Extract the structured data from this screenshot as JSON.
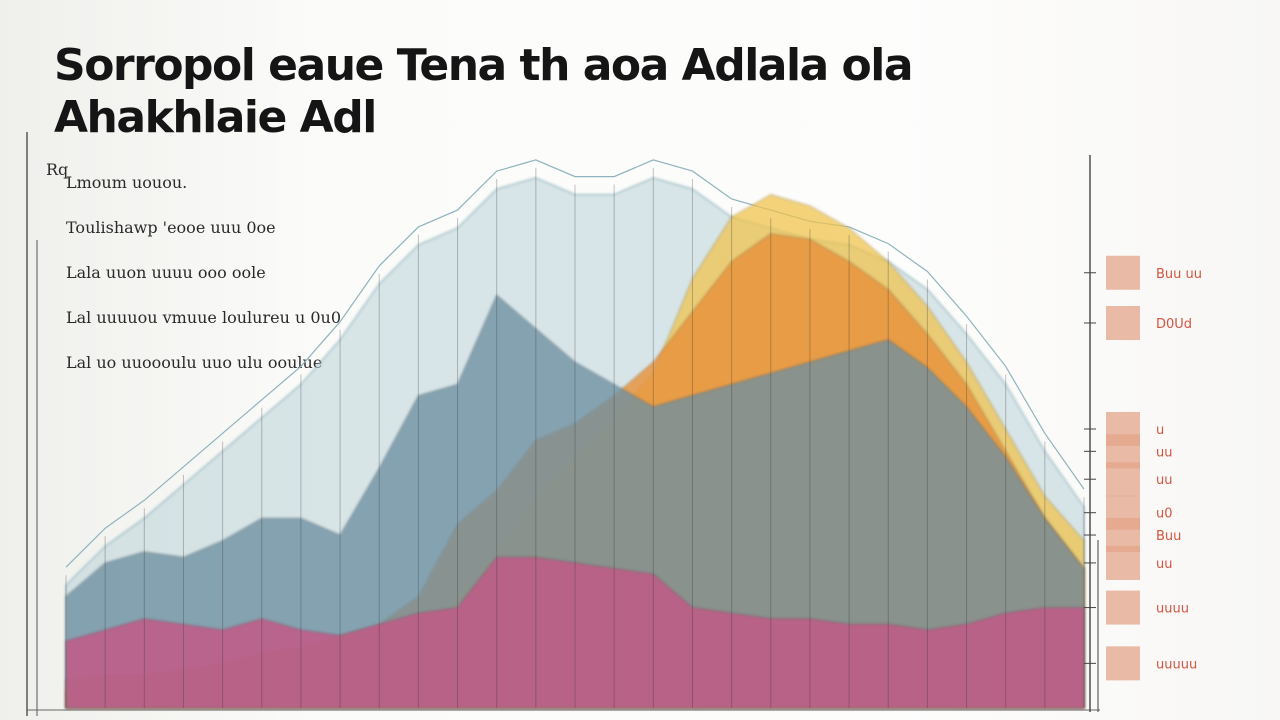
{
  "chart_data": {
    "type": "area",
    "title": "Sorropol eaue Tena th aoa Adlala ola Ahakhlaie Adl",
    "legend": {
      "placement": "top-left",
      "marker": "Rq",
      "entries": [
        "Lmoum uouou.",
        "Toulishawp 'eooe uuu 0oe",
        "Lala uuon uuuu ooo oole",
        "Lal uuuuou vmuue loulureu u 0u0",
        "Lal uo uuoooulu uuo ulu ooulue"
      ]
    },
    "grid": "vertical",
    "ylim": [
      0,
      100
    ],
    "x": [
      0,
      1,
      2,
      3,
      4,
      5,
      6,
      7,
      8,
      9,
      10,
      11,
      12,
      13,
      14,
      15,
      16,
      17,
      18,
      19,
      20,
      21,
      22,
      23,
      24,
      25,
      26
    ],
    "series": [
      {
        "color": "#c25a86",
        "values": [
          12,
          14,
          16,
          15,
          14,
          16,
          14,
          13,
          15,
          17,
          18,
          27,
          27,
          26,
          25,
          24,
          18,
          17,
          16,
          16,
          15,
          15,
          14,
          15,
          17,
          18,
          18
        ]
      },
      {
        "color": "#6e8fa1",
        "values": [
          20,
          26,
          28,
          27,
          30,
          34,
          34,
          31,
          43,
          56,
          58,
          74,
          68,
          62,
          58,
          54,
          56,
          58,
          60,
          62,
          64,
          66,
          61,
          54,
          45,
          34,
          25
        ]
      },
      {
        "color": "#e8923a",
        "values": [
          5,
          6,
          6,
          7,
          8,
          10,
          11,
          13,
          15,
          20,
          33,
          39,
          48,
          51,
          56,
          62,
          71,
          80,
          85,
          84,
          80,
          75,
          67,
          58,
          46,
          34,
          25
        ]
      },
      {
        "color": "#f0c24a",
        "values": [
          3,
          4,
          4,
          5,
          5,
          6,
          7,
          8,
          10,
          13,
          20,
          28,
          38,
          45,
          52,
          60,
          77,
          88,
          92,
          90,
          86,
          80,
          72,
          62,
          50,
          38,
          30
        ]
      },
      {
        "color": "#b9d4d8",
        "values": [
          22,
          29,
          34,
          40,
          46,
          52,
          58,
          66,
          76,
          83,
          86,
          93,
          95,
          92,
          92,
          95,
          93,
          88,
          86,
          84,
          83,
          80,
          75,
          67,
          58,
          46,
          36
        ]
      }
    ],
    "right_scale": {
      "ticks": [
        "Buu uu",
        "D0Ud",
        "u",
        "uu",
        "uu",
        "u0",
        "Buu",
        "uu",
        "uuuu",
        "uuuuu"
      ],
      "values": [
        78,
        69,
        50,
        46,
        41,
        35,
        31,
        26,
        18,
        8
      ]
    },
    "colors": {
      "series_1": "#c25a86",
      "series_2": "#6e8fa1",
      "series_3": "#e8923a",
      "series_4": "#f0c24a",
      "series_5": "#b9d4d8",
      "scale_bar": "#e3a489",
      "tick_text": "#d2553f"
    }
  }
}
